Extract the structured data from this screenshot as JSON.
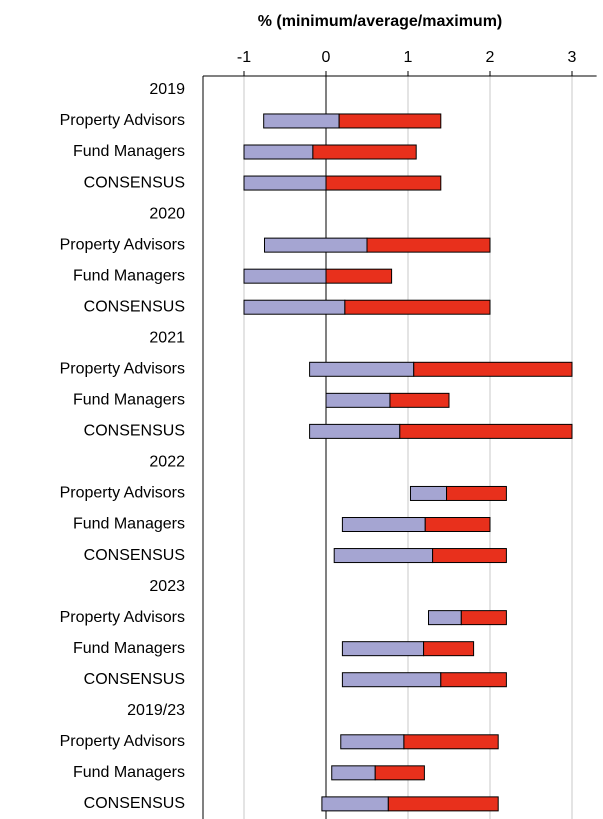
{
  "chart_data": {
    "type": "range-bar",
    "title": "% (minimum/average/maximum)",
    "categories": [
      "2019",
      "Property Advisors",
      "Fund Managers",
      "CONSENSUS",
      "2020",
      "Property Advisors",
      "Fund Managers",
      "CONSENSUS",
      "2021",
      "Property Advisors",
      "Fund Managers",
      "CONSENSUS",
      "2022",
      "Property Advisors",
      "Fund Managers",
      "CONSENSUS",
      "2023",
      "Property Advisors",
      "Fund Managers",
      "CONSENSUS",
      "2019/23",
      "Property Advisors",
      "Fund Managers",
      "CONSENSUS"
    ],
    "series": [
      {
        "color": "#a5a5d2",
        "values": [
          null,
          -0.76,
          -1.0,
          -1.0,
          null,
          -0.75,
          -1.0,
          -1.0,
          null,
          -0.2,
          0.0,
          -0.2,
          null,
          1.03,
          0.2,
          0.1,
          null,
          1.25,
          0.2,
          0.2,
          null,
          0.18,
          0.07,
          -0.05
        ]
      },
      {
        "color": "#a5a5d2",
        "values": [
          null,
          0.16,
          -0.16,
          0.0,
          null,
          0.5,
          0.0,
          0.23,
          null,
          1.07,
          0.78,
          0.9,
          null,
          1.47,
          1.21,
          1.3,
          null,
          1.65,
          1.19,
          1.4,
          null,
          0.95,
          0.6,
          0.76
        ]
      },
      {
        "color": "#e8301c",
        "values": [
          null,
          1.4,
          1.1,
          1.4,
          null,
          2.0,
          0.8,
          2.0,
          null,
          3.0,
          1.5,
          3.0,
          null,
          2.2,
          2.0,
          2.2,
          null,
          2.2,
          1.8,
          2.2,
          null,
          2.1,
          1.2,
          2.1
        ]
      }
    ],
    "xlim": [
      -1.5,
      3.3
    ],
    "xticks": [
      -1,
      0,
      1,
      2,
      3
    ],
    "grid": true
  }
}
